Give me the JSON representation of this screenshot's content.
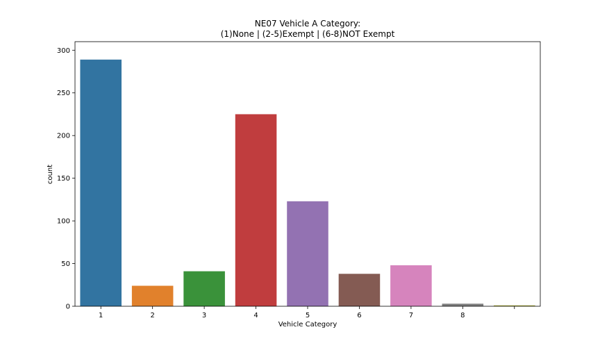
{
  "chart_data": {
    "type": "bar",
    "title": "NE07 Vehicle A Category:",
    "subtitle": "(1)None | (2-5)Exempt | (6-8)NOT Exempt",
    "xlabel": "Vehicle Category",
    "ylabel": "count",
    "categories": [
      "1",
      "2",
      "3",
      "4",
      "5",
      "6",
      "7",
      "8",
      ""
    ],
    "values": [
      289,
      24,
      41,
      225,
      123,
      38,
      48,
      3,
      1
    ],
    "colors": [
      "#3274a1",
      "#e1812c",
      "#3a923a",
      "#c03d3e",
      "#9372b2",
      "#845b53",
      "#d684bd",
      "#7f7f7f",
      "#a9aa35"
    ],
    "ylim": [
      0,
      310
    ],
    "yticks": [
      0,
      50,
      100,
      150,
      200,
      250,
      300
    ],
    "grid": false,
    "legend": "none"
  }
}
